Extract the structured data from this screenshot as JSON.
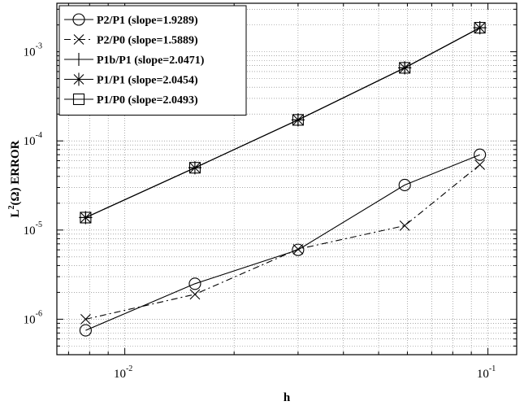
{
  "chart_data": {
    "type": "line",
    "title": "",
    "xlabel": "h",
    "ylabel_parts": {
      "base": "L",
      "sup": "2",
      "rest": "(Ω) ERROR"
    },
    "x_scale": "log",
    "y_scale": "log",
    "xlim": [
      0.0065,
      0.12
    ],
    "ylim": [
      4e-07,
      0.0035
    ],
    "grid": true,
    "legend_position": "top-left",
    "x_ticks": [
      {
        "value": 0.01,
        "base": "10",
        "exp": "-2"
      },
      {
        "value": 0.1,
        "base": "10",
        "exp": "-1"
      }
    ],
    "y_ticks": [
      {
        "value": 1e-06,
        "base": "10",
        "exp": "-6"
      },
      {
        "value": 1e-05,
        "base": "10",
        "exp": "-5"
      },
      {
        "value": 0.0001,
        "base": "10",
        "exp": "-4"
      },
      {
        "value": 0.001,
        "base": "10",
        "exp": "-3"
      }
    ],
    "x": [
      0.0078,
      0.0156,
      0.03,
      0.059,
      0.095
    ],
    "series": [
      {
        "name": "P2/P1  (slope=1.9289)",
        "marker": "circle",
        "dash": "",
        "values": [
          7.5e-07,
          2.5e-06,
          6e-06,
          3.2e-05,
          7e-05
        ]
      },
      {
        "name": "P2/P0  (slope=1.5889)",
        "marker": "x",
        "dash": "8 4 2 4",
        "values": [
          1e-06,
          1.9e-06,
          6.1e-06,
          1.12e-05,
          5.4e-05
        ]
      },
      {
        "name": "P1b/P1  (slope=2.0471)",
        "marker": "plus",
        "dash": "",
        "values": [
          1.38e-05,
          5e-05,
          0.000172,
          0.00066,
          0.00186
        ]
      },
      {
        "name": "P1/P1  (slope=2.0454)",
        "marker": "star",
        "dash": "",
        "values": [
          1.38e-05,
          5e-05,
          0.000172,
          0.00066,
          0.00186
        ]
      },
      {
        "name": "P1/P0  (slope=2.0493)",
        "marker": "square",
        "dash": "",
        "values": [
          1.38e-05,
          5e-05,
          0.000172,
          0.00066,
          0.00186
        ]
      }
    ]
  }
}
